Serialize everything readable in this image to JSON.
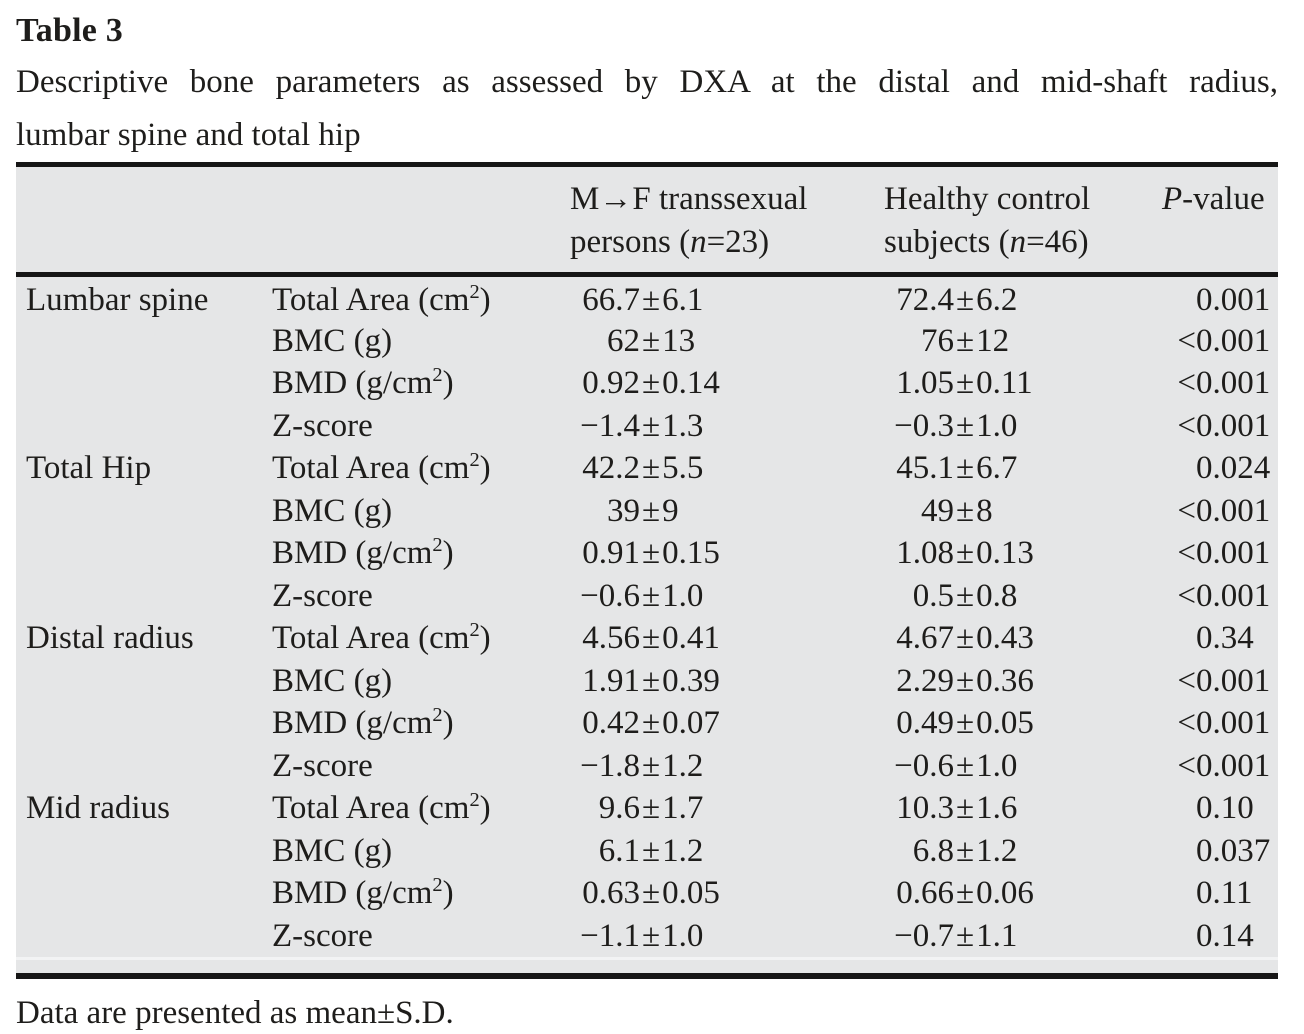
{
  "title": "Table 3",
  "caption": {
    "line1": "Descriptive bone parameters as assessed by DXA at the distal and mid-shaft radius,",
    "line2": "lumbar spine and total hip"
  },
  "symbols": {
    "pm": "±"
  },
  "header": {
    "mf": {
      "line1": "M→F transsexual",
      "line2_pre": "persons (",
      "n": "n",
      "line2_post": "=23)"
    },
    "hc": {
      "line1": "Healthy control",
      "line2_pre": "subjects (",
      "n": "n",
      "line2_post": "=46)"
    },
    "p": {
      "italic": "P",
      "rest": "-value"
    }
  },
  "table": {
    "rows": [
      {
        "region": "Lumbar spine",
        "param_pre": "Total Area (cm",
        "param_sup": "2",
        "param_post": ")",
        "mf_mean": "66.7",
        "mf_sd": "6.1",
        "hc_mean": "72.4",
        "hc_sd": "6.2",
        "p_prefix": "",
        "p_value": "0.001"
      },
      {
        "region": "",
        "param_pre": "BMC (g)",
        "param_sup": "",
        "param_post": "",
        "mf_mean": "62",
        "mf_sd": "13",
        "hc_mean": "76",
        "hc_sd": "12",
        "p_prefix": "<",
        "p_value": "0.001"
      },
      {
        "region": "",
        "param_pre": "BMD (g/cm",
        "param_sup": "2",
        "param_post": ")",
        "mf_mean": "0.92",
        "mf_sd": "0.14",
        "hc_mean": "1.05",
        "hc_sd": "0.11",
        "p_prefix": "<",
        "p_value": "0.001"
      },
      {
        "region": "",
        "param_pre": "Z-score",
        "param_sup": "",
        "param_post": "",
        "mf_mean": "−1.4",
        "mf_sd": "1.3",
        "hc_mean": "−0.3",
        "hc_sd": "1.0",
        "p_prefix": "<",
        "p_value": "0.001"
      },
      {
        "region": "Total Hip",
        "param_pre": "Total Area (cm",
        "param_sup": "2",
        "param_post": ")",
        "mf_mean": "42.2",
        "mf_sd": "5.5",
        "hc_mean": "45.1",
        "hc_sd": "6.7",
        "p_prefix": "",
        "p_value": "0.024"
      },
      {
        "region": "",
        "param_pre": "BMC (g)",
        "param_sup": "",
        "param_post": "",
        "mf_mean": "39",
        "mf_sd": "9",
        "hc_mean": "49",
        "hc_sd": "8",
        "p_prefix": "<",
        "p_value": "0.001"
      },
      {
        "region": "",
        "param_pre": "BMD (g/cm",
        "param_sup": "2",
        "param_post": ")",
        "mf_mean": "0.91",
        "mf_sd": "0.15",
        "hc_mean": "1.08",
        "hc_sd": "0.13",
        "p_prefix": "<",
        "p_value": "0.001"
      },
      {
        "region": "",
        "param_pre": "Z-score",
        "param_sup": "",
        "param_post": "",
        "mf_mean": "−0.6",
        "mf_sd": "1.0",
        "hc_mean": "0.5",
        "hc_sd": "0.8",
        "p_prefix": "<",
        "p_value": "0.001"
      },
      {
        "region": "Distal radius",
        "param_pre": "Total Area (cm",
        "param_sup": "2",
        "param_post": ")",
        "mf_mean": "4.56",
        "mf_sd": "0.41",
        "hc_mean": "4.67",
        "hc_sd": "0.43",
        "p_prefix": "",
        "p_value": "0.34"
      },
      {
        "region": "",
        "param_pre": "BMC (g)",
        "param_sup": "",
        "param_post": "",
        "mf_mean": "1.91",
        "mf_sd": "0.39",
        "hc_mean": "2.29",
        "hc_sd": "0.36",
        "p_prefix": "<",
        "p_value": "0.001"
      },
      {
        "region": "",
        "param_pre": "BMD (g/cm",
        "param_sup": "2",
        "param_post": ")",
        "mf_mean": "0.42",
        "mf_sd": "0.07",
        "hc_mean": "0.49",
        "hc_sd": "0.05",
        "p_prefix": "<",
        "p_value": "0.001"
      },
      {
        "region": "",
        "param_pre": "Z-score",
        "param_sup": "",
        "param_post": "",
        "mf_mean": "−1.8",
        "mf_sd": "1.2",
        "hc_mean": "−0.6",
        "hc_sd": "1.0",
        "p_prefix": "<",
        "p_value": "0.001"
      },
      {
        "region": "Mid radius",
        "param_pre": "Total Area (cm",
        "param_sup": "2",
        "param_post": ")",
        "mf_mean": "9.6",
        "mf_sd": "1.7",
        "hc_mean": "10.3",
        "hc_sd": "1.6",
        "p_prefix": "",
        "p_value": "0.10"
      },
      {
        "region": "",
        "param_pre": "BMC (g)",
        "param_sup": "",
        "param_post": "",
        "mf_mean": "6.1",
        "mf_sd": "1.2",
        "hc_mean": "6.8",
        "hc_sd": "1.2",
        "p_prefix": "",
        "p_value": "0.037"
      },
      {
        "region": "",
        "param_pre": "BMD (g/cm",
        "param_sup": "2",
        "param_post": ")",
        "mf_mean": "0.63",
        "mf_sd": "0.05",
        "hc_mean": "0.66",
        "hc_sd": "0.06",
        "p_prefix": "",
        "p_value": "0.11"
      },
      {
        "region": "",
        "param_pre": "Z-score",
        "param_sup": "",
        "param_post": "",
        "mf_mean": "−1.1",
        "mf_sd": "1.0",
        "hc_mean": "−0.7",
        "hc_sd": "1.1",
        "p_prefix": "",
        "p_value": "0.14"
      }
    ]
  },
  "footnote": "Data are presented as mean±S.D."
}
